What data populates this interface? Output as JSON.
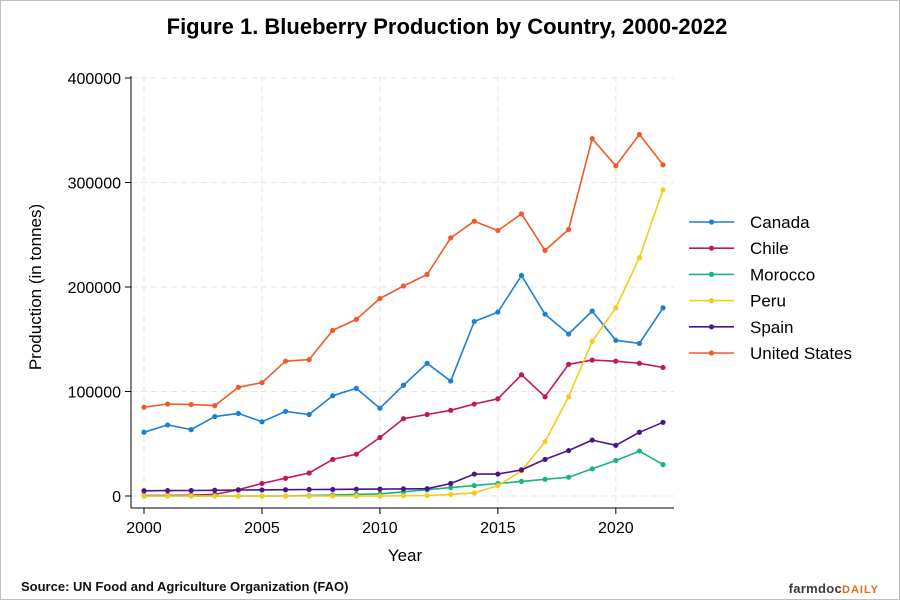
{
  "chart_data": {
    "type": "line",
    "title": "Figure 1. Blueberry Production by Country, 2000-2022",
    "xlabel": "Year",
    "ylabel": "Production (in tonnes)",
    "xlim": [
      2000,
      2022
    ],
    "ylim": [
      0,
      400000
    ],
    "xticks": [
      2000,
      2005,
      2010,
      2015,
      2020
    ],
    "yticks": [
      0,
      100000,
      200000,
      300000,
      400000
    ],
    "grid": true,
    "legend_position": "right",
    "x": [
      2000,
      2001,
      2002,
      2003,
      2004,
      2005,
      2006,
      2007,
      2008,
      2009,
      2010,
      2011,
      2012,
      2013,
      2014,
      2015,
      2016,
      2017,
      2018,
      2019,
      2020,
      2021,
      2022
    ],
    "series": [
      {
        "name": "Canada",
        "color": "#1a7fd6",
        "values": [
          61000,
          68000,
          63500,
          76000,
          79000,
          71000,
          81000,
          78000,
          96000,
          103000,
          84000,
          106000,
          127000,
          110000,
          167000,
          176000,
          211000,
          174000,
          155000,
          177000,
          149000,
          146000,
          180000
        ]
      },
      {
        "name": "Chile",
        "color": "#c2185b",
        "values": [
          500,
          600,
          800,
          1500,
          6000,
          12000,
          17000,
          22000,
          35000,
          40000,
          56000,
          74000,
          78000,
          82000,
          88000,
          93000,
          116000,
          95000,
          126000,
          130000,
          129000,
          127000,
          123000
        ]
      },
      {
        "name": "Morocco",
        "color": "#1bb37e",
        "values": [
          0,
          0,
          0,
          0,
          0,
          0,
          0,
          500,
          1000,
          1500,
          2000,
          4000,
          6000,
          8000,
          10000,
          12000,
          14000,
          16000,
          18000,
          26000,
          34000,
          43000,
          30000
        ]
      },
      {
        "name": "Peru",
        "color": "#f5cc1a",
        "values": [
          0,
          0,
          0,
          0,
          0,
          0,
          0,
          0,
          0,
          0,
          0,
          200,
          500,
          1500,
          3000,
          10000,
          24000,
          52000,
          95000,
          148000,
          180000,
          228000,
          293000
        ]
      },
      {
        "name": "Spain",
        "color": "#4a148c",
        "values": [
          5000,
          5200,
          5300,
          5500,
          5700,
          5800,
          6000,
          6200,
          6300,
          6500,
          6600,
          6800,
          7000,
          12000,
          21000,
          21000,
          25000,
          35000,
          43500,
          53500,
          48500,
          61000,
          70500
        ]
      },
      {
        "name": "United States",
        "color": "#f05a28",
        "values": [
          85000,
          88000,
          87500,
          86500,
          104000,
          108500,
          129000,
          130500,
          158500,
          169000,
          189000,
          201000,
          212000,
          247000,
          263000,
          254000,
          270000,
          235000,
          255000,
          342000,
          316000,
          346000,
          317000
        ]
      }
    ]
  },
  "footer": {
    "source": "Source: UN Food and Agriculture Organization (FAO)",
    "logo_main": "farmdoc",
    "logo_sub": "DAILY"
  }
}
